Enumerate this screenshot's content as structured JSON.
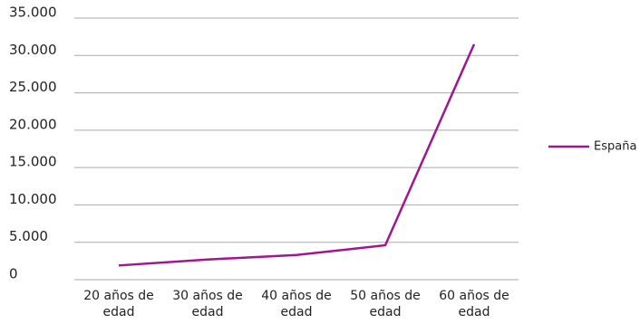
{
  "chart_data": {
    "type": "line",
    "categories": [
      "20 años de edad",
      "30 años de edad",
      "40 años de edad",
      "50 años de edad",
      "60 años de edad"
    ],
    "series": [
      {
        "name": "España",
        "color": "#a0168e",
        "values": [
          1900,
          2700,
          3300,
          4600,
          31500
        ]
      }
    ],
    "ylim": [
      0,
      35000
    ],
    "yticks": [
      0,
      {
        "value": 5000,
        "label": "5.000"
      },
      {
        "value": 10000,
        "label": "10.000"
      },
      {
        "value": 15000,
        "label": "15.000"
      },
      {
        "value": 20000,
        "label": "20.000"
      },
      {
        "value": 25000,
        "label": "25.000"
      },
      {
        "value": 30000,
        "label": "30.000"
      },
      {
        "value": 35000,
        "label": "35.000"
      }
    ],
    "grid": true,
    "legend": "right"
  }
}
